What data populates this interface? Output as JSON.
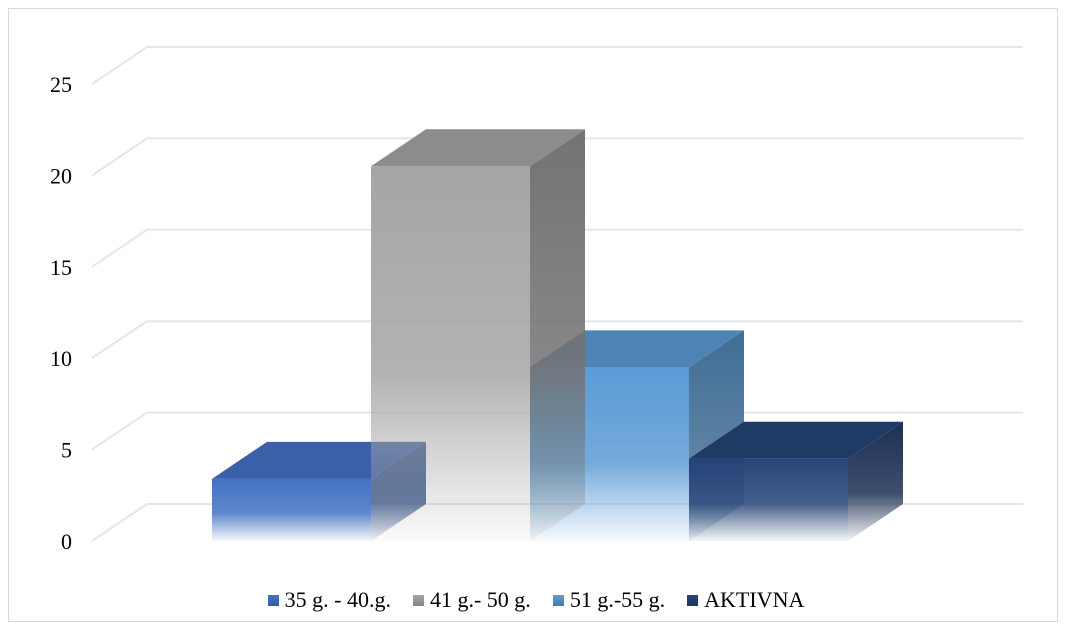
{
  "chart_data": {
    "type": "bar",
    "title": "",
    "xlabel": "",
    "ylabel": "",
    "ylim": [
      0,
      25
    ],
    "yticks": [
      0,
      5,
      10,
      15,
      20,
      25
    ],
    "grid": true,
    "legend_position": "bottom",
    "three_d": true,
    "series": [
      {
        "name": "35 g. - 40.g.",
        "value": 3.4,
        "color": "#4472C4"
      },
      {
        "name": "41 g.- 50 g.",
        "value": 20.5,
        "color": "#A5A5A5"
      },
      {
        "name": "51 g.-55 g.",
        "value": 9.5,
        "color": "#5B9BD5"
      },
      {
        "name": "AKTIVNA",
        "value": 4.5,
        "color": "#264478"
      }
    ]
  }
}
